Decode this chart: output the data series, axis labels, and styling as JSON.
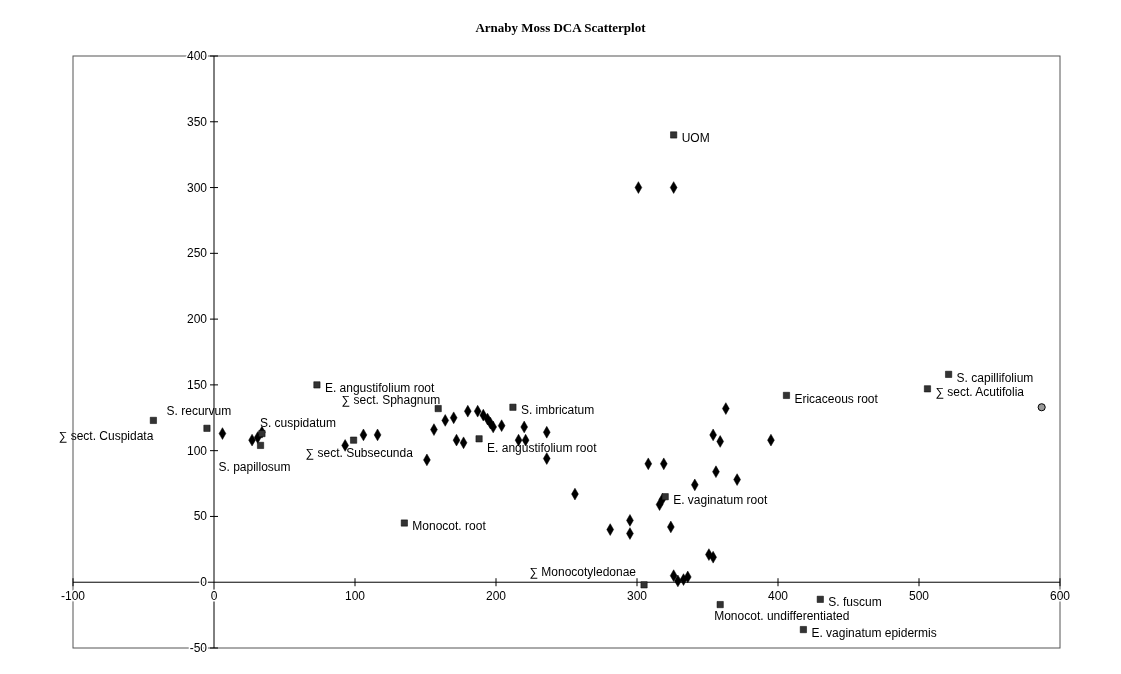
{
  "chart_data": {
    "type": "scatter",
    "title": "Arnaby Moss DCA Scatterplot",
    "xlim": [
      -100,
      600
    ],
    "xticks": [
      -100,
      0,
      100,
      200,
      300,
      400,
      500,
      600
    ],
    "ylim": [
      -50,
      400
    ],
    "yticks": [
      -50,
      0,
      50,
      100,
      150,
      200,
      250,
      300,
      350,
      400
    ],
    "grid": false,
    "series": [
      {
        "color": "#000000",
        "marker": "diamond",
        "x": [
          6,
          27,
          31,
          34,
          93,
          106,
          116,
          151,
          156,
          164,
          170,
          172,
          177,
          180,
          187,
          191,
          194,
          196,
          198,
          204,
          216,
          220,
          221,
          236,
          236,
          256,
          281,
          295,
          295,
          301,
          326,
          308,
          319,
          363,
          354,
          359,
          395,
          356,
          371,
          341,
          316,
          318,
          324,
          351,
          354,
          326,
          329,
          333,
          336
        ],
        "values": [
          113,
          108,
          110,
          114,
          104,
          112,
          112,
          93,
          116,
          123,
          125,
          108,
          106,
          130,
          130,
          127,
          124,
          121,
          118,
          119,
          108,
          118,
          108,
          114,
          94,
          67,
          40,
          47,
          37,
          300,
          300,
          90,
          90,
          132,
          112,
          107,
          108,
          84,
          78,
          74,
          59,
          63,
          42,
          21,
          19,
          5,
          1,
          2,
          4
        ]
      },
      {
        "color": "#333333",
        "marker": "square",
        "x": [
          326,
          73,
          159,
          212,
          188,
          -43,
          -5,
          34,
          33,
          99,
          135,
          320,
          305,
          359,
          430,
          418,
          406,
          521,
          506
        ],
        "values": [
          340,
          150,
          132,
          133,
          109,
          123,
          117,
          113,
          104,
          108,
          45,
          65,
          -2,
          -17,
          -13,
          -36,
          142,
          158,
          147
        ],
        "value_labels": [
          "UOM",
          "E. angustifolium root",
          "∑ sect. Sphagnum",
          "S. imbricatum",
          "E. angustifolium root",
          "∑ sect. Cuspidata",
          "S. recurvum",
          "S. cuspidatum",
          "S. papillosum",
          "∑ sect. Subsecunda",
          "Monocot. root",
          "E. vaginatum root",
          "∑ Monocotyledonae",
          "Monocot. undifferentiated",
          "S. fuscum",
          "E. vaginatum epidermis",
          "Ericaceous root",
          "S. capillifolium",
          "∑ sect. Acutifolia"
        ]
      },
      {
        "color": "#999999",
        "marker": "circle",
        "x": [
          587
        ],
        "values": [
          133
        ]
      }
    ]
  }
}
